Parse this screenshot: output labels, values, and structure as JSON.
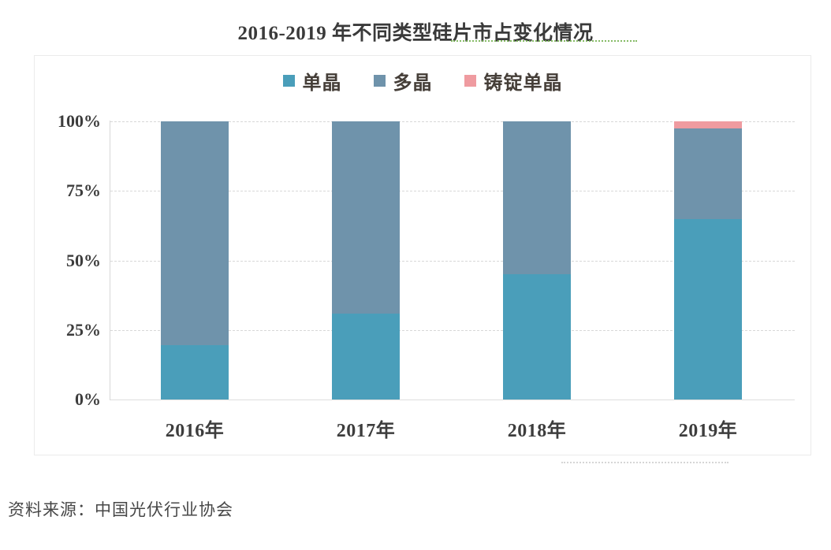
{
  "title": "2016-2019 年不同类型硅片市占变化情况",
  "source_note": "资料来源：中国光伏行业协会",
  "chart_data": {
    "type": "bar",
    "stacked": true,
    "unit": "percent",
    "title": "2016-2019 年不同类型硅片市占变化情况",
    "categories": [
      "2016年",
      "2017年",
      "2018年",
      "2019年"
    ],
    "series": [
      {
        "name": "单晶",
        "color": "#4a9eba",
        "values": [
          19.5,
          31,
          45,
          65
        ]
      },
      {
        "name": "多晶",
        "color": "#6f93ab",
        "values": [
          80.5,
          69,
          55,
          32.5
        ]
      },
      {
        "name": "铸锭单晶",
        "color": "#ef9ba0",
        "values": [
          0,
          0,
          0,
          2.5
        ]
      }
    ],
    "yticks": [
      "0%",
      "25%",
      "50%",
      "75%",
      "100%"
    ],
    "ylim": [
      0,
      100
    ],
    "xlabel": "",
    "ylabel": "",
    "legend_position": "top-center",
    "grid": "horizontal-dashed"
  }
}
